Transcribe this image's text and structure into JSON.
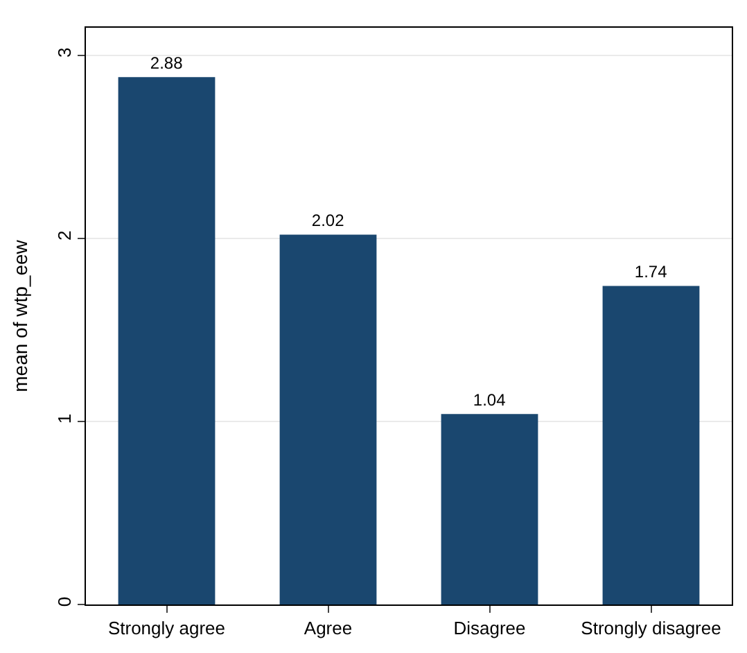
{
  "chart_data": {
    "type": "bar",
    "ylabel": "mean of wtp_eew",
    "categories": [
      "Strongly agree",
      "Agree",
      "Disagree",
      "Strongly disagree"
    ],
    "values": [
      2.88,
      2.02,
      1.04,
      1.74
    ],
    "color": "#1a476f",
    "ylim": [
      0,
      3.15
    ],
    "yticks": [
      0,
      1,
      2,
      3
    ],
    "grid": "y",
    "legend": false,
    "data_labels": true
  }
}
